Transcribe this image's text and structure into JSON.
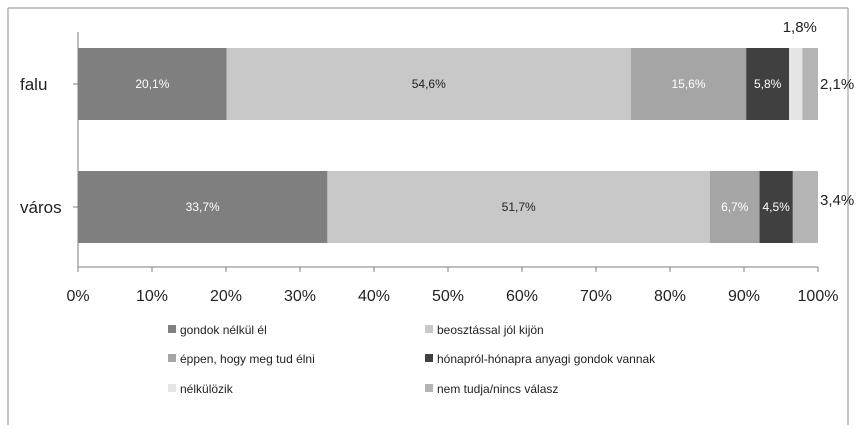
{
  "chart_data": {
    "type": "bar",
    "orientation": "horizontal",
    "stacked": true,
    "percent_axis": true,
    "categories": [
      "falu",
      "város"
    ],
    "xlim": [
      0,
      100
    ],
    "x_ticks": [
      "0%",
      "10%",
      "20%",
      "30%",
      "40%",
      "50%",
      "60%",
      "70%",
      "80%",
      "90%",
      "100%"
    ],
    "grid": false,
    "legend_position": "bottom",
    "series": [
      {
        "name": "gondok nélkül él",
        "color": "#7f7f7f",
        "values": [
          20.1,
          33.7
        ],
        "labels": [
          "20,1%",
          "33,7%"
        ]
      },
      {
        "name": "beosztással jól kijön",
        "color": "#c8c8c8",
        "values": [
          54.6,
          51.7
        ],
        "labels": [
          "54,6%",
          "51,7%"
        ]
      },
      {
        "name": "éppen, hogy meg tud élni",
        "color": "#a5a5a5",
        "values": [
          15.6,
          6.7
        ],
        "labels": [
          "15,6%",
          "6,7%"
        ]
      },
      {
        "name": "hónapról-hónapra anyagi gondok vannak",
        "color": "#404040",
        "values": [
          5.8,
          4.5
        ],
        "labels": [
          "5,8%",
          "4,5%"
        ]
      },
      {
        "name": "nélkülözik",
        "color": "#e5e5e5",
        "values": [
          1.8,
          0
        ],
        "labels": [
          "1,8%",
          ""
        ]
      },
      {
        "name": "nem tudja/nincs válasz",
        "color": "#b4b4b4",
        "values": [
          2.1,
          3.4
        ],
        "labels": [
          "2,1%",
          "3,4%"
        ]
      }
    ]
  }
}
